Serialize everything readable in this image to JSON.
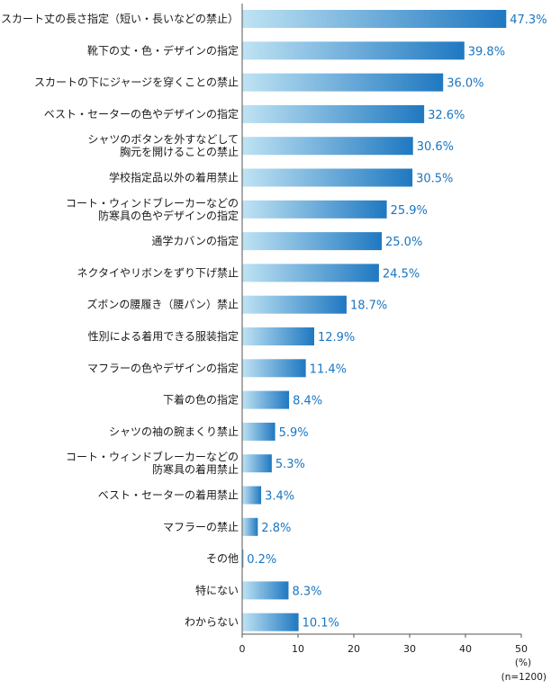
{
  "chart_data": {
    "type": "bar",
    "orientation": "horizontal",
    "categories": [
      [
        "スカート丈の長さ指定（短い・長いなどの禁止）"
      ],
      [
        "靴下の丈・色・デザインの指定"
      ],
      [
        "スカートの下にジャージを穿くことの禁止"
      ],
      [
        "ベスト・セーターの色やデザインの指定"
      ],
      [
        "シャツのボタンを外すなどして",
        "胸元を開けることの禁止"
      ],
      [
        "学校指定品以外の着用禁止"
      ],
      [
        "コート・ウィンドブレーカーなどの",
        "防寒具の色やデザインの指定"
      ],
      [
        "通学カバンの指定"
      ],
      [
        "ネクタイやリボンをずり下げ禁止"
      ],
      [
        "ズボンの腰履き（腰パン）禁止"
      ],
      [
        "性別による着用できる服装指定"
      ],
      [
        "マフラーの色やデザインの指定"
      ],
      [
        "下着の色の指定"
      ],
      [
        "シャツの袖の腕まくり禁止"
      ],
      [
        "コート・ウィンドブレーカーなどの",
        "防寒具の着用禁止"
      ],
      [
        "ベスト・セーターの着用禁止"
      ],
      [
        "マフラーの禁止"
      ],
      [
        "その他"
      ],
      [
        "特にない"
      ],
      [
        "わからない"
      ]
    ],
    "values": [
      47.3,
      39.8,
      36.0,
      32.6,
      30.6,
      30.5,
      25.9,
      25.0,
      24.5,
      18.7,
      12.9,
      11.4,
      8.4,
      5.9,
      5.3,
      3.4,
      2.8,
      0.2,
      8.3,
      10.1
    ],
    "value_labels": [
      "47.3%",
      "39.8%",
      "36.0%",
      "32.6%",
      "30.6%",
      "30.5%",
      "25.9%",
      "25.0%",
      "24.5%",
      "18.7%",
      "12.9%",
      "11.4%",
      "8.4%",
      "5.9%",
      "5.3%",
      "3.4%",
      "2.8%",
      "0.2%",
      "8.3%",
      "10.1%"
    ],
    "xlim": [
      0,
      50
    ],
    "x_ticks": [
      "0",
      "10",
      "20",
      "30",
      "40",
      "50"
    ],
    "x_unit": "(%)",
    "sample_note": "(n=1200)",
    "colors": {
      "bar_light": "#bfe3f3",
      "bar_dark": "#1f78c1",
      "value_text": "#1a76c2",
      "axis": "#555555"
    }
  }
}
